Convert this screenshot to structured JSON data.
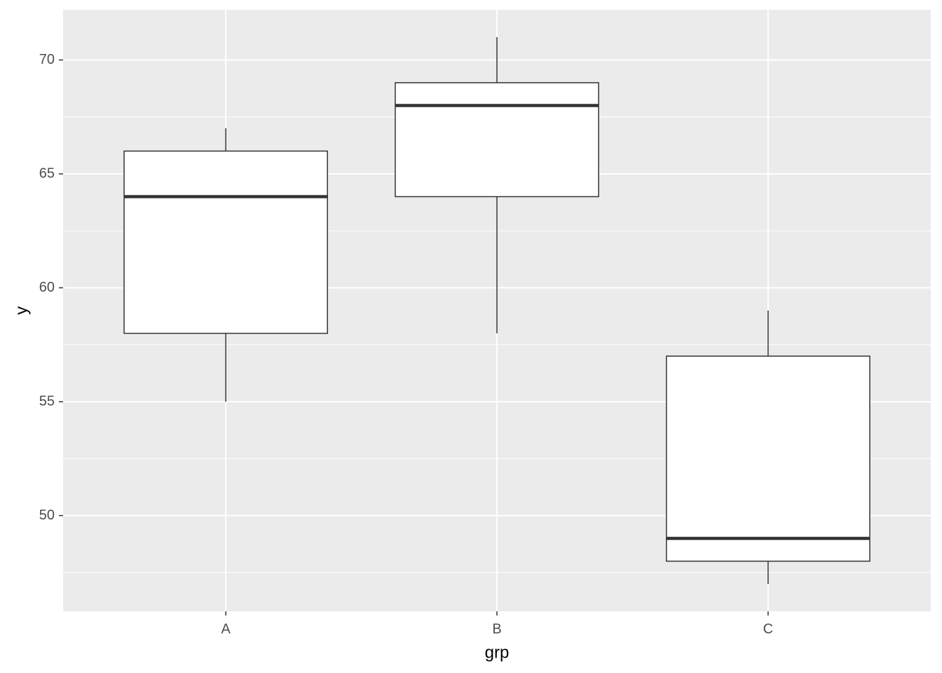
{
  "chart_data": {
    "type": "boxplot",
    "x_label": "grp",
    "y_label": "y",
    "categories": [
      "A",
      "B",
      "C"
    ],
    "boxes": [
      {
        "min": 55,
        "q1": 58,
        "median": 64,
        "q3": 66,
        "max": 67
      },
      {
        "min": 58,
        "q1": 64,
        "median": 68,
        "q3": 69,
        "max": 71
      },
      {
        "min": 47,
        "q1": 48,
        "median": 49,
        "q3": 57,
        "max": 59
      }
    ],
    "fill": "#ffffff",
    "outline": "#333333",
    "ylim": [
      45.8,
      72.2
    ],
    "yticks": [
      50,
      55,
      60,
      65,
      70
    ],
    "minor_yticks": [
      47.5,
      52.5,
      57.5,
      62.5,
      67.5
    ],
    "grid": true
  }
}
